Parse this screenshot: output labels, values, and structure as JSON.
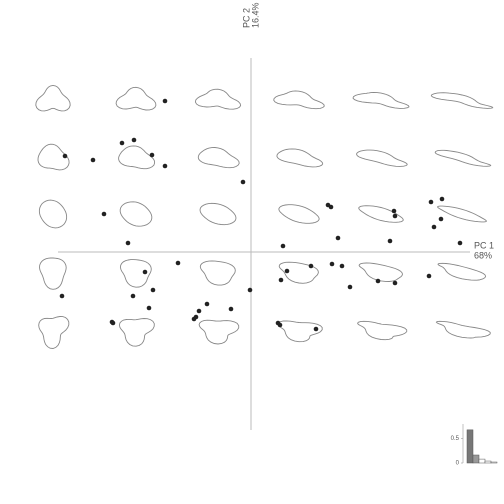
{
  "chart_data": [
    {
      "type": "scatter",
      "xlabel": [
        "PC 1",
        "68%"
      ],
      "ylabel": [
        "PC 2",
        "16.4%"
      ],
      "xlim": [
        -0.193,
        0.219
      ],
      "ylim": [
        -0.178,
        0.194
      ],
      "color": "#222222",
      "x": [
        -0.086,
        -0.129,
        -0.117,
        -0.099,
        -0.086,
        -0.186,
        -0.158,
        -0.008,
        -0.147,
        -0.123,
        -0.073,
        -0.106,
        -0.098,
        -0.118,
        -0.189,
        -0.102,
        -0.138,
        -0.139,
        -0.044,
        -0.052,
        -0.055,
        -0.057,
        -0.02,
        -0.001,
        0.077,
        0.08,
        0.032,
        0.087,
        0.036,
        0.03,
        0.06,
        0.081,
        0.091,
        0.099,
        0.143,
        0.144,
        0.139,
        0.127,
        0.144,
        0.18,
        0.191,
        0.19,
        0.183,
        0.209,
        0.178,
        0.027,
        0.029,
        0.065
      ],
      "y": [
        0.151,
        0.109,
        0.112,
        0.097,
        0.086,
        0.096,
        0.092,
        0.07,
        0.038,
        0.009,
        -0.011,
        -0.02,
        -0.038,
        -0.044,
        -0.044,
        -0.056,
        -0.071,
        -0.07,
        -0.052,
        -0.059,
        -0.065,
        -0.067,
        -0.057,
        -0.038,
        0.047,
        0.045,
        0.006,
        0.014,
        -0.019,
        -0.028,
        -0.014,
        -0.012,
        -0.014,
        -0.035,
        0.041,
        0.036,
        0.011,
        -0.029,
        -0.031,
        0.05,
        0.053,
        0.033,
        0.025,
        0.009,
        -0.024,
        -0.071,
        -0.073,
        -0.077
      ]
    },
    {
      "type": "bar",
      "categories": [
        null,
        null,
        null,
        null,
        null
      ],
      "values": [
        0.68,
        0.164,
        0.08,
        0.04,
        0.02
      ],
      "colors": [
        "#777777",
        "#999999",
        "#ffffff",
        "#ffffff",
        "#ffffff"
      ],
      "ylim": [
        0,
        0.8
      ],
      "yticks": [
        0,
        0.5
      ]
    }
  ]
}
